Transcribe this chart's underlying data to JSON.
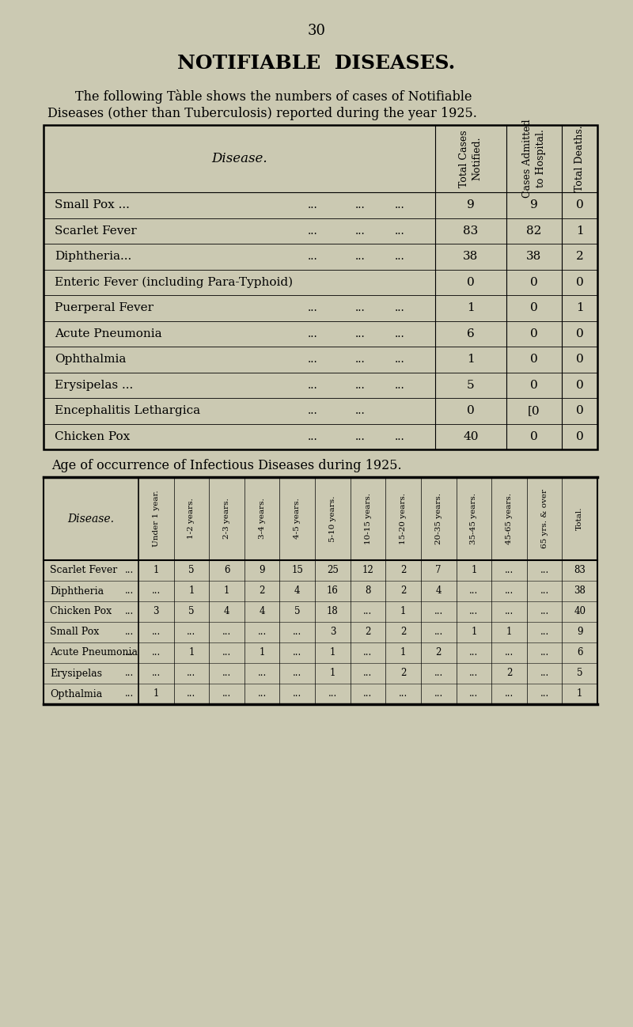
{
  "bg_color": "#cbc9b2",
  "page_number": "30",
  "title": "NOTIFIABLE  DISEASES.",
  "intro_line1": "The following Tàble shows the numbers of cases of Notifiable",
  "intro_line2": "Diseases (other than Tuberculosis) reported during the year 1925.",
  "table1_data": [
    [
      "Small Pox ...",
      "...",
      "...",
      "...",
      "9",
      "9",
      "0"
    ],
    [
      "Scarlet Fever",
      "...",
      "...",
      "...",
      "83",
      "82",
      "1"
    ],
    [
      "Diphtheria...",
      "...",
      "...",
      "...",
      "38",
      "38",
      "2"
    ],
    [
      "Enteric Fever (including Para-Typhoid)",
      "",
      "",
      "",
      "0",
      "0",
      "0"
    ],
    [
      "Puerperal Fever",
      "...",
      "...",
      "...",
      "1",
      "0",
      "1"
    ],
    [
      "Acute Pneumonia",
      "...",
      "...",
      "...",
      "6",
      "0",
      "0"
    ],
    [
      "Ophthalmia",
      "...",
      "...",
      "...",
      "1",
      "0",
      "0"
    ],
    [
      "Erysipelas ...",
      "...",
      "...",
      "...",
      "5",
      "0",
      "0"
    ],
    [
      "Encephalitis Lethargica",
      "...",
      "...",
      "",
      "0",
      "[0",
      "0"
    ],
    [
      "Chicken Pox",
      "...",
      "...",
      "...",
      "40",
      "0",
      "0"
    ]
  ],
  "age_title": "Age of occurrence of Infectious Diseases during 1925.",
  "age_col_headers": [
    "Under 1 year.",
    "1-2 years.",
    "2-3 years.",
    "3-4 years.",
    "4-5 years.",
    "5-10 years.",
    "10-15 years.",
    "15-20 years.",
    "20-35 years.",
    "35-45 years.",
    "45-65 years.",
    "65 yrs. & over",
    "Total."
  ],
  "age_row_vals": [
    [
      "Scarlet Fever",
      "...",
      [
        "1",
        "5",
        "6",
        "9",
        "15",
        "25",
        "12",
        "2",
        "7",
        "1",
        "...",
        "...",
        "83"
      ]
    ],
    [
      "Diphtheria",
      "...",
      [
        "...",
        "1",
        "1",
        "2",
        "4",
        "16",
        "8",
        "2",
        "4",
        "...",
        "...",
        "...",
        "38"
      ]
    ],
    [
      "Chicken Pox",
      "...",
      [
        "3",
        "5",
        "4",
        "4",
        "5",
        "18",
        "...",
        "1",
        "...",
        "...",
        "...",
        "...",
        "40"
      ]
    ],
    [
      "Small Pox",
      "...",
      [
        "...",
        "...",
        "...",
        "...",
        "...",
        "3",
        "2",
        "2",
        "...",
        "1",
        "1",
        "...",
        "9"
      ]
    ],
    [
      "Acute Pneumonia",
      "...",
      [
        "...",
        "1",
        "...",
        "1",
        "...",
        "1",
        "...",
        "1",
        "2",
        "...",
        "...",
        "...",
        "6"
      ]
    ],
    [
      "Erysipelas",
      "...",
      [
        "...",
        "...",
        "...",
        "...",
        "...",
        "1",
        "...",
        "2",
        "...",
        "...",
        "2",
        "...",
        "5"
      ]
    ],
    [
      "Opthalmia",
      "...",
      [
        "1",
        "...",
        "...",
        "...",
        "...",
        "...",
        "...",
        "...",
        "...",
        "...",
        "...",
        "...",
        "1"
      ]
    ]
  ]
}
